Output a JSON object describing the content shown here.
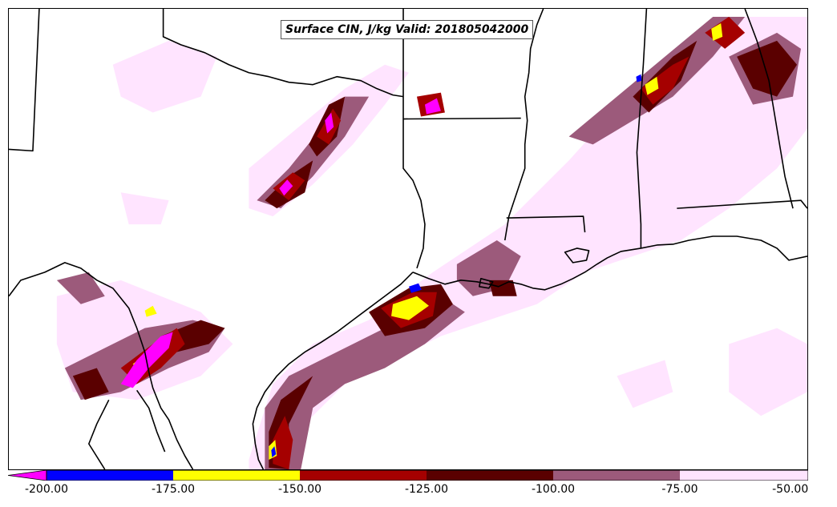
{
  "map": {
    "title": "Surface CIN, J/kg Valid: 201805042000",
    "colors": {
      "lt_neg200": "#ff00ff",
      "neg200_neg175": "#0000ff",
      "neg175_neg150": "#ffff00",
      "neg150_neg125": "#a50000",
      "neg125_neg100": "#5a0000",
      "neg100_neg75": "#9c5a7b",
      "neg75_neg50": "#ffe4ff"
    },
    "colorbar": {
      "ticks": [
        "-200.00",
        "-175.00",
        "-150.00",
        "-125.00",
        "-100.00",
        "-75.00",
        "-50.00"
      ],
      "extend": "min"
    }
  }
}
